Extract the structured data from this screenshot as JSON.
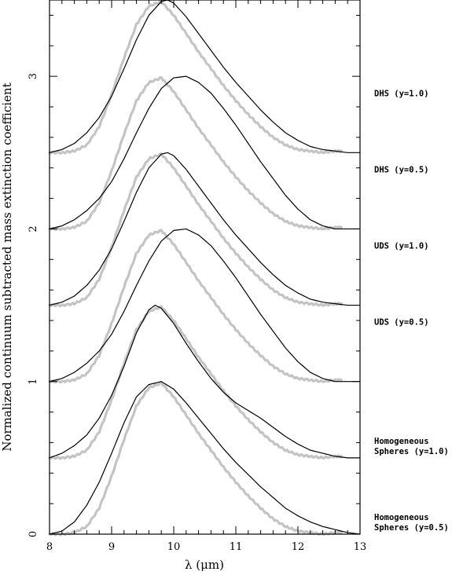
{
  "chart_data": {
    "type": "line",
    "xlabel": "λ (μm)",
    "ylabel": "Normalized continuum subtracted mass extinction coefficient",
    "xlim": [
      8,
      13
    ],
    "ylim": [
      0,
      3.5
    ],
    "xticks": [
      8,
      9,
      10,
      11,
      12,
      13
    ],
    "yticks": [
      0,
      1,
      2,
      3
    ],
    "grid": false,
    "legend": "none",
    "colors": {
      "model": "#000000",
      "observed": "#c4c4c4"
    },
    "series": [
      {
        "label_lines": [
          "Homogeneous",
          "Spheres (y=0.5)"
        ],
        "offset": 0.0,
        "model": {
          "x": [
            8.0,
            8.2,
            8.4,
            8.6,
            8.8,
            9.0,
            9.2,
            9.4,
            9.6,
            9.8,
            10.0,
            10.2,
            10.4,
            10.6,
            10.8,
            11.0,
            11.2,
            11.4,
            11.6,
            11.8,
            12.0,
            12.2,
            12.4,
            12.6,
            12.8,
            13.0
          ],
          "y": [
            0.0,
            0.02,
            0.08,
            0.19,
            0.34,
            0.53,
            0.73,
            0.9,
            0.98,
            1.0,
            0.95,
            0.86,
            0.76,
            0.66,
            0.56,
            0.47,
            0.39,
            0.31,
            0.24,
            0.17,
            0.12,
            0.08,
            0.05,
            0.03,
            0.01,
            0.0
          ]
        },
        "observed": {
          "x": [
            8.0,
            8.2,
            8.4,
            8.6,
            8.8,
            9.0,
            9.2,
            9.4,
            9.6,
            9.8,
            10.0,
            10.2,
            10.4,
            10.6,
            10.8,
            11.0,
            11.2,
            11.4,
            11.6,
            11.8,
            12.0,
            12.2,
            12.4,
            12.6,
            12.7
          ],
          "y": [
            0.0,
            0.0,
            0.01,
            0.05,
            0.17,
            0.38,
            0.62,
            0.84,
            0.96,
            0.99,
            0.9,
            0.78,
            0.66,
            0.55,
            0.44,
            0.34,
            0.25,
            0.17,
            0.1,
            0.05,
            0.02,
            0.01,
            0.0,
            0.01,
            0.01
          ]
        }
      },
      {
        "label_lines": [
          "Homogeneous",
          "Spheres (y=1.0)"
        ],
        "offset": 0.5,
        "model": {
          "x": [
            8.0,
            8.2,
            8.4,
            8.6,
            8.8,
            9.0,
            9.2,
            9.4,
            9.6,
            9.7,
            9.8,
            10.0,
            10.2,
            10.4,
            10.6,
            10.8,
            11.0,
            11.2,
            11.4,
            11.6,
            11.8,
            12.0,
            12.2,
            12.4,
            12.6,
            12.8,
            13.0
          ],
          "y": [
            0.0,
            0.03,
            0.08,
            0.15,
            0.26,
            0.41,
            0.6,
            0.82,
            0.97,
            1.0,
            0.98,
            0.88,
            0.75,
            0.63,
            0.52,
            0.43,
            0.36,
            0.31,
            0.26,
            0.2,
            0.14,
            0.09,
            0.05,
            0.03,
            0.01,
            0.0,
            0.0
          ]
        },
        "observed": {
          "x": [
            8.0,
            8.2,
            8.4,
            8.6,
            8.8,
            9.0,
            9.2,
            9.4,
            9.6,
            9.8,
            10.0,
            10.2,
            10.4,
            10.6,
            10.8,
            11.0,
            11.2,
            11.4,
            11.6,
            11.8,
            12.0,
            12.2,
            12.4,
            12.6,
            12.7
          ],
          "y": [
            0.0,
            0.0,
            0.01,
            0.05,
            0.17,
            0.38,
            0.62,
            0.84,
            0.96,
            0.99,
            0.9,
            0.78,
            0.66,
            0.55,
            0.44,
            0.34,
            0.25,
            0.17,
            0.1,
            0.05,
            0.02,
            0.01,
            0.0,
            0.01,
            0.01
          ]
        }
      },
      {
        "label_lines": [
          "UDS (y=0.5)"
        ],
        "offset": 1.0,
        "model": {
          "x": [
            8.0,
            8.2,
            8.4,
            8.6,
            8.8,
            9.0,
            9.2,
            9.4,
            9.6,
            9.8,
            10.0,
            10.2,
            10.4,
            10.6,
            10.8,
            11.0,
            11.2,
            11.4,
            11.6,
            11.8,
            12.0,
            12.2,
            12.4,
            12.6,
            12.8,
            13.0
          ],
          "y": [
            0.0,
            0.02,
            0.06,
            0.12,
            0.2,
            0.31,
            0.46,
            0.63,
            0.79,
            0.92,
            0.99,
            1.0,
            0.96,
            0.89,
            0.79,
            0.68,
            0.56,
            0.44,
            0.33,
            0.22,
            0.13,
            0.06,
            0.02,
            0.0,
            0.0,
            0.0
          ]
        },
        "observed": {
          "x": [
            8.0,
            8.2,
            8.4,
            8.6,
            8.8,
            9.0,
            9.2,
            9.4,
            9.6,
            9.8,
            10.0,
            10.2,
            10.4,
            10.6,
            10.8,
            11.0,
            11.2,
            11.4,
            11.6,
            11.8,
            12.0,
            12.2,
            12.4,
            12.6,
            12.7
          ],
          "y": [
            0.0,
            0.0,
            0.01,
            0.05,
            0.17,
            0.38,
            0.62,
            0.84,
            0.96,
            0.99,
            0.9,
            0.78,
            0.66,
            0.55,
            0.44,
            0.34,
            0.25,
            0.17,
            0.1,
            0.05,
            0.02,
            0.01,
            0.0,
            0.01,
            0.01
          ]
        }
      },
      {
        "label_lines": [
          "UDS (y=1.0)"
        ],
        "offset": 1.5,
        "model": {
          "x": [
            8.0,
            8.2,
            8.4,
            8.6,
            8.8,
            9.0,
            9.2,
            9.4,
            9.6,
            9.8,
            9.9,
            10.0,
            10.2,
            10.4,
            10.6,
            10.8,
            11.0,
            11.2,
            11.4,
            11.6,
            11.8,
            12.0,
            12.2,
            12.4,
            12.6,
            12.8,
            13.0
          ],
          "y": [
            0.0,
            0.02,
            0.06,
            0.13,
            0.23,
            0.37,
            0.55,
            0.74,
            0.9,
            0.99,
            1.0,
            0.98,
            0.89,
            0.78,
            0.67,
            0.56,
            0.46,
            0.37,
            0.28,
            0.2,
            0.13,
            0.08,
            0.04,
            0.02,
            0.01,
            0.0,
            0.0
          ]
        },
        "observed": {
          "x": [
            8.0,
            8.2,
            8.4,
            8.6,
            8.8,
            9.0,
            9.2,
            9.4,
            9.6,
            9.8,
            10.0,
            10.2,
            10.4,
            10.6,
            10.8,
            11.0,
            11.2,
            11.4,
            11.6,
            11.8,
            12.0,
            12.2,
            12.4,
            12.6,
            12.7
          ],
          "y": [
            0.0,
            0.0,
            0.01,
            0.05,
            0.17,
            0.38,
            0.62,
            0.84,
            0.96,
            0.99,
            0.9,
            0.78,
            0.66,
            0.55,
            0.44,
            0.34,
            0.25,
            0.17,
            0.1,
            0.05,
            0.02,
            0.01,
            0.0,
            0.01,
            0.01
          ]
        }
      },
      {
        "label_lines": [
          "DHS (y=0.5)"
        ],
        "offset": 2.0,
        "model": {
          "x": [
            8.0,
            8.2,
            8.4,
            8.6,
            8.8,
            9.0,
            9.2,
            9.4,
            9.6,
            9.8,
            10.0,
            10.2,
            10.4,
            10.6,
            10.8,
            11.0,
            11.2,
            11.4,
            11.6,
            11.8,
            12.0,
            12.2,
            12.4,
            12.6,
            12.8,
            13.0
          ],
          "y": [
            0.0,
            0.02,
            0.06,
            0.12,
            0.2,
            0.31,
            0.46,
            0.63,
            0.79,
            0.92,
            0.99,
            1.0,
            0.96,
            0.89,
            0.79,
            0.68,
            0.56,
            0.44,
            0.33,
            0.22,
            0.13,
            0.06,
            0.02,
            0.0,
            0.0,
            0.0
          ]
        },
        "observed": {
          "x": [
            8.0,
            8.2,
            8.4,
            8.6,
            8.8,
            9.0,
            9.2,
            9.4,
            9.6,
            9.8,
            10.0,
            10.2,
            10.4,
            10.6,
            10.8,
            11.0,
            11.2,
            11.4,
            11.6,
            11.8,
            12.0,
            12.2,
            12.4,
            12.6,
            12.7
          ],
          "y": [
            0.0,
            0.0,
            0.01,
            0.05,
            0.17,
            0.38,
            0.62,
            0.84,
            0.96,
            0.99,
            0.9,
            0.78,
            0.66,
            0.55,
            0.44,
            0.34,
            0.25,
            0.17,
            0.1,
            0.05,
            0.02,
            0.01,
            0.0,
            0.01,
            0.01
          ]
        }
      },
      {
        "label_lines": [
          "DHS (y=1.0)"
        ],
        "offset": 2.5,
        "model": {
          "x": [
            8.0,
            8.2,
            8.4,
            8.6,
            8.8,
            9.0,
            9.2,
            9.4,
            9.6,
            9.8,
            9.9,
            10.0,
            10.2,
            10.4,
            10.6,
            10.8,
            11.0,
            11.2,
            11.4,
            11.6,
            11.8,
            12.0,
            12.2,
            12.4,
            12.6,
            12.8,
            13.0
          ],
          "y": [
            0.0,
            0.02,
            0.06,
            0.13,
            0.23,
            0.37,
            0.55,
            0.74,
            0.9,
            0.99,
            1.0,
            0.98,
            0.89,
            0.78,
            0.67,
            0.56,
            0.46,
            0.37,
            0.28,
            0.2,
            0.13,
            0.08,
            0.04,
            0.02,
            0.01,
            0.0,
            0.0
          ]
        },
        "observed": {
          "x": [
            8.0,
            8.2,
            8.4,
            8.6,
            8.8,
            9.0,
            9.2,
            9.4,
            9.6,
            9.8,
            10.0,
            10.2,
            10.4,
            10.6,
            10.8,
            11.0,
            11.2,
            11.4,
            11.6,
            11.8,
            12.0,
            12.2,
            12.4,
            12.6,
            12.7
          ],
          "y": [
            0.0,
            0.0,
            0.01,
            0.05,
            0.17,
            0.38,
            0.62,
            0.84,
            0.96,
            0.99,
            0.9,
            0.78,
            0.66,
            0.55,
            0.44,
            0.34,
            0.25,
            0.17,
            0.1,
            0.05,
            0.02,
            0.01,
            0.0,
            0.01,
            0.01
          ]
        }
      }
    ]
  }
}
